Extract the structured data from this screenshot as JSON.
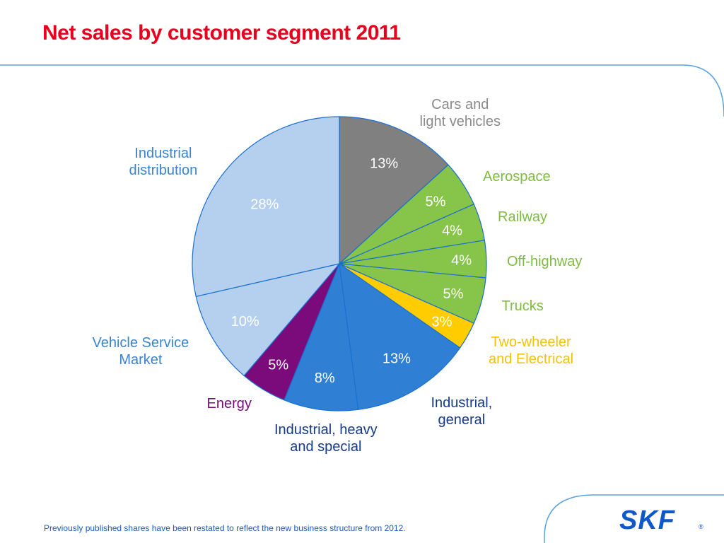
{
  "title": "Net sales by customer segment 2011",
  "footnote": "Previously published shares have been restated to reflect the new business structure from 2012.",
  "logo_text": "SKF",
  "chart_data": {
    "type": "pie",
    "title": "Net sales by customer segment 2011",
    "slices": [
      {
        "name": "Cars and\nlight vehicles",
        "value": 13,
        "label": "13%",
        "color": "#808080",
        "name_color": "#8a8a8a"
      },
      {
        "name": "Aerospace",
        "value": 5,
        "label": "5%",
        "color": "#86c44a",
        "name_color": "#7dbb42"
      },
      {
        "name": "Railway",
        "value": 4,
        "label": "4%",
        "color": "#86c44a",
        "name_color": "#7dbb42"
      },
      {
        "name": "Off-highway",
        "value": 4,
        "label": "4%",
        "color": "#86c44a",
        "name_color": "#7dbb42"
      },
      {
        "name": "Trucks",
        "value": 5,
        "label": "5%",
        "color": "#86c44a",
        "name_color": "#7dbb42"
      },
      {
        "name": "Two-wheeler\nand Electrical",
        "value": 3,
        "label": "3%",
        "color": "#ffcc00",
        "name_color": "#f2c200"
      },
      {
        "name": "Industrial,\ngeneral",
        "value": 13,
        "label": "13%",
        "color": "#2f7fd5",
        "name_color": "#163a8a"
      },
      {
        "name": "Industrial, heavy\nand special",
        "value": 8,
        "label": "8%",
        "color": "#2f7fd5",
        "name_color": "#163a8a"
      },
      {
        "name": "Energy",
        "value": 5,
        "label": "5%",
        "color": "#7b0a7b",
        "name_color": "#7b0a7b"
      },
      {
        "name": "Vehicle Service\nMarket",
        "value": 10,
        "label": "10%",
        "color": "#b4d0ee",
        "name_color": "#3a84cf"
      },
      {
        "name": "Industrial\ndistribution",
        "value": 28,
        "label": "28%",
        "color": "#b4d0ee",
        "name_color": "#3a84cf"
      }
    ]
  }
}
